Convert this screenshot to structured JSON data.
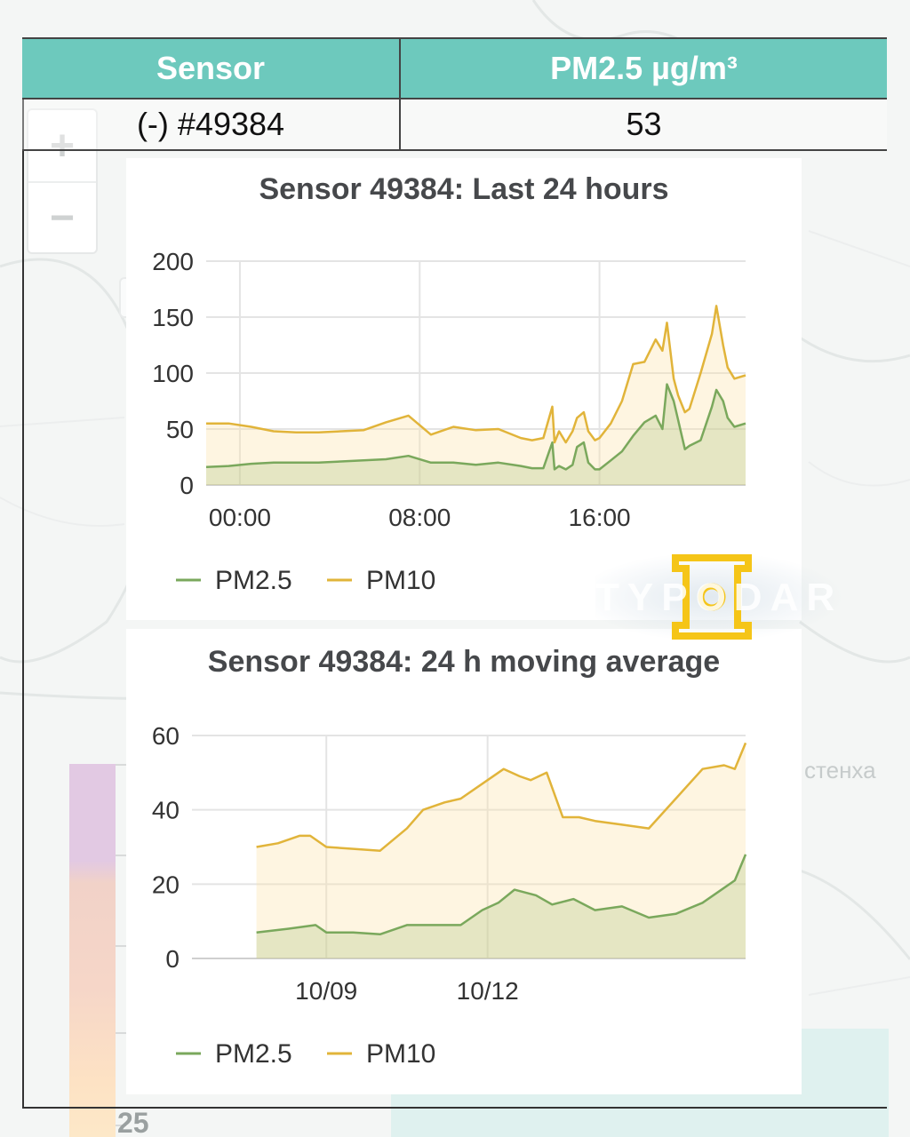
{
  "table": {
    "headers": [
      "Sensor",
      "PM2.5 µg/m³"
    ],
    "row": {
      "sensor": "(-) #49384",
      "pm25": "53"
    }
  },
  "map": {
    "zoom_in": "+",
    "zoom_out": "−",
    "scale_label": "25",
    "place_label": "стенха"
  },
  "watermark": "TYPODAR",
  "colors": {
    "pm25": "#7aa85c",
    "pm10": "#e1b43a",
    "header": "#6dc9bd"
  },
  "chart_data": [
    {
      "type": "area",
      "title": "Sensor 49384: Last 24 hours",
      "xlabel": "",
      "ylabel": "",
      "xlim_hours": [
        -1.5,
        22.5
      ],
      "ylim": [
        0,
        200
      ],
      "yticks": [
        0,
        50,
        100,
        150,
        200
      ],
      "xticks": [
        {
          "value": 0,
          "label": "00:00"
        },
        {
          "value": 8,
          "label": "08:00"
        },
        {
          "value": 16,
          "label": "16:00"
        }
      ],
      "grid": true,
      "legend_position": "bottom-left",
      "series": [
        {
          "name": "PM2.5",
          "color": "#7aa85c",
          "x": [
            -1.5,
            -0.5,
            0.5,
            1.5,
            2.5,
            3.5,
            4.5,
            5.5,
            6.5,
            7.5,
            8.5,
            9.5,
            10.5,
            11.5,
            12.5,
            13.0,
            13.5,
            13.9,
            14.0,
            14.2,
            14.5,
            14.8,
            15.0,
            15.3,
            15.5,
            15.8,
            16.0,
            16.5,
            17.0,
            17.5,
            18.0,
            18.5,
            18.8,
            19.0,
            19.3,
            19.5,
            19.8,
            20.0,
            20.5,
            21.0,
            21.2,
            21.5,
            21.7,
            22.0,
            22.5
          ],
          "values": [
            16,
            17,
            19,
            20,
            20,
            20,
            21,
            22,
            23,
            26,
            20,
            20,
            18,
            20,
            17,
            15,
            15,
            38,
            14,
            17,
            14,
            18,
            34,
            38,
            20,
            14,
            14,
            22,
            30,
            44,
            56,
            62,
            50,
            90,
            75,
            58,
            32,
            35,
            40,
            70,
            85,
            75,
            60,
            52,
            55
          ]
        },
        {
          "name": "PM10",
          "color": "#e1b43a",
          "x": [
            -1.5,
            -0.5,
            0.5,
            1.5,
            2.5,
            3.5,
            4.5,
            5.5,
            6.5,
            7.5,
            8.5,
            9.5,
            10.5,
            11.5,
            12.5,
            13.0,
            13.5,
            13.9,
            14.0,
            14.2,
            14.5,
            14.8,
            15.0,
            15.3,
            15.5,
            15.8,
            16.0,
            16.5,
            17.0,
            17.5,
            18.0,
            18.5,
            18.8,
            19.0,
            19.3,
            19.5,
            19.8,
            20.0,
            20.5,
            21.0,
            21.2,
            21.5,
            21.7,
            22.0,
            22.5
          ],
          "values": [
            55,
            55,
            52,
            48,
            47,
            47,
            48,
            49,
            56,
            62,
            45,
            52,
            49,
            50,
            42,
            40,
            42,
            70,
            38,
            48,
            38,
            48,
            60,
            65,
            48,
            40,
            42,
            55,
            75,
            108,
            110,
            130,
            120,
            145,
            95,
            80,
            65,
            68,
            100,
            135,
            160,
            125,
            105,
            95,
            98
          ]
        }
      ]
    },
    {
      "type": "area",
      "title": "Sensor 49384: 24 h moving average",
      "xlabel": "",
      "ylabel": "",
      "xlim_days": [
        6.5,
        16.8
      ],
      "ylim": [
        0,
        60
      ],
      "yticks": [
        0,
        20,
        40,
        60
      ],
      "xticks": [
        {
          "value": 9,
          "label": "10/09"
        },
        {
          "value": 12,
          "label": "10/12"
        }
      ],
      "grid": true,
      "legend_position": "bottom-left",
      "series": [
        {
          "name": "PM2.5",
          "color": "#7aa85c",
          "x": [
            7.7,
            8.3,
            8.8,
            9.0,
            9.5,
            10.0,
            10.5,
            11.0,
            11.5,
            11.9,
            12.2,
            12.5,
            12.9,
            13.2,
            13.6,
            14.0,
            14.5,
            15.0,
            15.5,
            16.0,
            16.3,
            16.6,
            16.8
          ],
          "values": [
            7,
            8,
            9,
            7,
            7,
            6.5,
            9,
            9,
            9,
            13,
            15,
            18.5,
            17,
            14.5,
            16,
            13,
            14,
            11,
            12,
            15,
            18,
            21,
            28
          ]
        },
        {
          "name": "PM10",
          "color": "#e1b43a",
          "x": [
            7.7,
            8.1,
            8.5,
            8.7,
            9.0,
            9.5,
            10.0,
            10.5,
            10.8,
            11.2,
            11.5,
            12.0,
            12.3,
            12.6,
            12.8,
            13.1,
            13.4,
            13.7,
            14.0,
            14.5,
            15.0,
            15.5,
            16.0,
            16.4,
            16.6,
            16.8
          ],
          "values": [
            30,
            31,
            33,
            33,
            30,
            29.5,
            29,
            35,
            40,
            42,
            43,
            48,
            51,
            49,
            48,
            50,
            38,
            38,
            37,
            36,
            35,
            43,
            51,
            52,
            51,
            58
          ]
        }
      ]
    }
  ]
}
